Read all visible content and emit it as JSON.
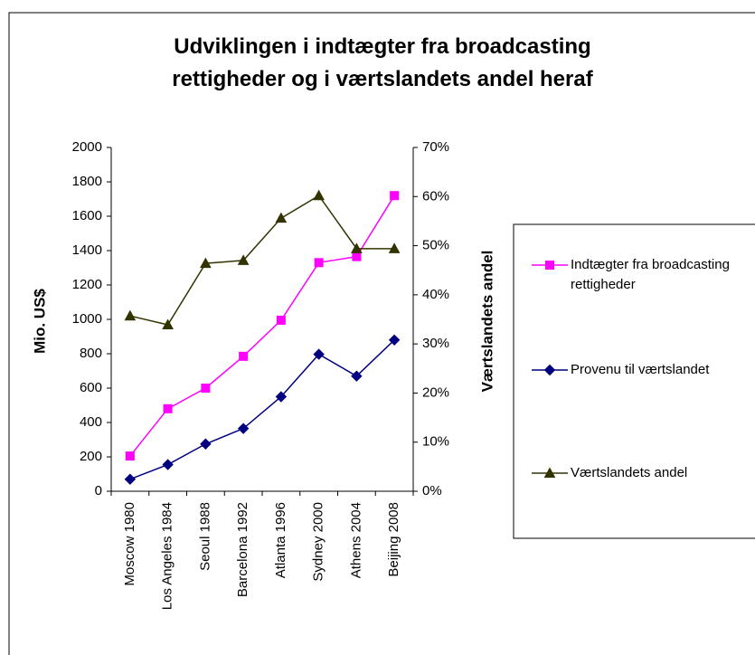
{
  "chart_data": {
    "type": "line",
    "title": "Udviklingen i indtægter fra broadcasting rettigheder og i værtslandets andel heraf",
    "y_label": "Mio. US$",
    "y2_label": "Værtslandets andel",
    "categories": [
      "Moscow 1980",
      "Los Angeles 1984",
      "Seoul 1988",
      "Barcelona 1992",
      "Atlanta 1996",
      "Sydney 2000",
      "Athens 2004",
      "Beijing 2008"
    ],
    "series": [
      {
        "name": "Indtægter fra broadcasting rettigheder",
        "color": "#ff00ff",
        "marker": "square",
        "values": [
          205,
          480,
          600,
          785,
          995,
          1330,
          1365,
          1720
        ]
      },
      {
        "name": "Provenu til værtslandet",
        "color": "#000080",
        "marker": "diamond",
        "values": [
          70,
          155,
          275,
          365,
          550,
          797,
          670,
          880
        ]
      },
      {
        "name": "Værtslandets andel",
        "color": "#333300",
        "marker": "triangle",
        "axis": "y2",
        "values": [
          35.7,
          33.9,
          46.4,
          47,
          55.6,
          60.2,
          49.4,
          49.4
        ]
      }
    ],
    "ylim": [
      0,
      2000
    ],
    "yticks": [
      0,
      200,
      400,
      600,
      800,
      1000,
      1200,
      1400,
      1600,
      1800,
      2000
    ],
    "y2lim": [
      0,
      70
    ],
    "y2ticks": [
      {
        "value": 0,
        "label": "0%"
      },
      {
        "value": 10,
        "label": "10%"
      },
      {
        "value": 20,
        "label": "20%"
      },
      {
        "value": 30,
        "label": "30%"
      },
      {
        "value": 40,
        "label": "40%"
      },
      {
        "value": 50,
        "label": "50%"
      },
      {
        "value": 60,
        "label": "60%"
      },
      {
        "value": 70,
        "label": "70%"
      }
    ],
    "grid": false,
    "legend": "right"
  }
}
